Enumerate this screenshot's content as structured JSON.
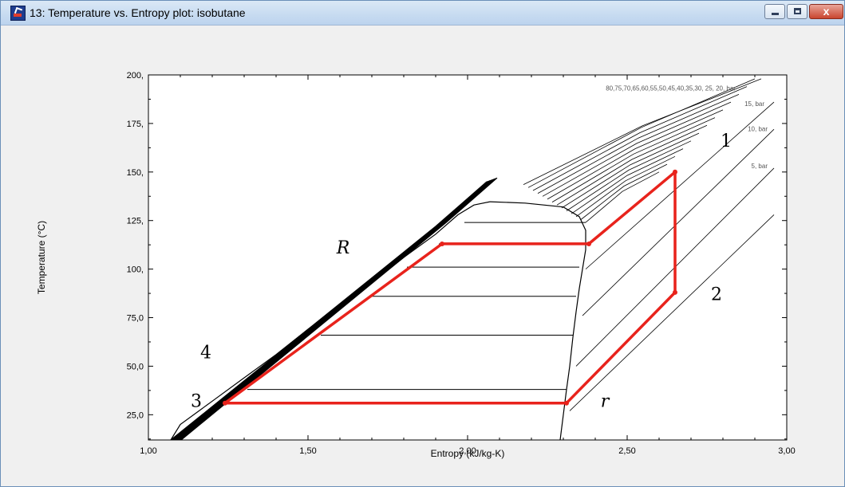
{
  "window": {
    "title": "13: Temperature vs. Entropy plot: isobutane",
    "buttons": {
      "minimize": "minimize-icon",
      "maximize": "maximize-icon",
      "close": "close-icon",
      "close_glyph": "x"
    }
  },
  "chart_data": {
    "type": "line",
    "xlabel": "Entropy (kJ/kg-K)",
    "ylabel": "Temperature (°C)",
    "xlim": [
      1.0,
      3.0
    ],
    "ylim": [
      12,
      200
    ],
    "x_ticks": [
      "1,00",
      "1,50",
      "2,00",
      "2,50",
      "3,00"
    ],
    "y_ticks": [
      {
        "v": 25,
        "label": "25,0"
      },
      {
        "v": 50,
        "label": "50,0"
      },
      {
        "v": 75,
        "label": "75,0"
      },
      {
        "v": 100,
        "label": "100,"
      },
      {
        "v": 125,
        "label": "125,"
      },
      {
        "v": 150,
        "label": "150,"
      },
      {
        "v": 175,
        "label": "175,"
      },
      {
        "v": 200,
        "label": "200,"
      }
    ],
    "grid": false,
    "isobar_labels": [
      {
        "text": "80,75,70,65,60,55,50,45,40,35,30, 25, 20, bar",
        "s": 2.84,
        "t": 192
      },
      {
        "text": "15, bar",
        "s": 2.93,
        "t": 184
      },
      {
        "text": "10, bar",
        "s": 2.94,
        "t": 171
      },
      {
        "text": "5, bar",
        "s": 2.94,
        "t": 152
      }
    ],
    "saturation_dome": {
      "liquid": [
        [
          1.07,
          12
        ],
        [
          1.1,
          20
        ],
        [
          1.2,
          32
        ],
        [
          1.3,
          44
        ],
        [
          1.4,
          56
        ],
        [
          1.5,
          69
        ],
        [
          1.6,
          81
        ],
        [
          1.7,
          93
        ],
        [
          1.8,
          106
        ],
        [
          1.9,
          118
        ],
        [
          1.97,
          128
        ],
        [
          2.02,
          133
        ],
        [
          2.07,
          134.7
        ]
      ],
      "vapor": [
        [
          2.07,
          134.7
        ],
        [
          2.18,
          134
        ],
        [
          2.3,
          132
        ],
        [
          2.35,
          127
        ],
        [
          2.37,
          120
        ],
        [
          2.37,
          110
        ],
        [
          2.36,
          100
        ],
        [
          2.35,
          90
        ],
        [
          2.34,
          78
        ],
        [
          2.33,
          65
        ],
        [
          2.32,
          50
        ],
        [
          2.31,
          38
        ],
        [
          2.3,
          25
        ],
        [
          2.29,
          12
        ]
      ]
    },
    "dome_tie_lines": [
      {
        "T": 38,
        "s1": 1.31,
        "s2": 2.31
      },
      {
        "T": 66,
        "s1": 1.54,
        "s2": 2.33
      },
      {
        "T": 86,
        "s1": 1.7,
        "s2": 2.34
      },
      {
        "T": 101,
        "s1": 1.81,
        "s2": 2.35
      },
      {
        "T": 113,
        "s1": 1.91,
        "s2": 2.36
      },
      {
        "T": 124,
        "s1": 1.99,
        "s2": 2.37
      }
    ],
    "compressed_liquid_band": [
      [
        1.07,
        12
      ],
      [
        1.9,
        122
      ],
      [
        2.06,
        145
      ]
    ],
    "series": [
      {
        "points": [
          [
            2.31,
            31
          ],
          [
            2.65,
            88
          ],
          [
            2.65,
            150
          ],
          [
            2.38,
            113
          ],
          [
            1.92,
            113
          ],
          [
            1.24,
            31
          ],
          [
            2.31,
            31
          ]
        ],
        "color": "#e8231c"
      }
    ],
    "annotations": [
      {
        "text": "1",
        "s": 2.81,
        "t": 163
      },
      {
        "text": "2",
        "s": 2.78,
        "t": 84
      },
      {
        "text": "3",
        "s": 1.15,
        "t": 29
      },
      {
        "text": "4",
        "s": 1.18,
        "t": 54
      },
      {
        "text": "R",
        "s": 1.61,
        "t": 108,
        "italic": true
      },
      {
        "text": "r",
        "s": 2.43,
        "t": 29,
        "italic": true
      }
    ]
  }
}
